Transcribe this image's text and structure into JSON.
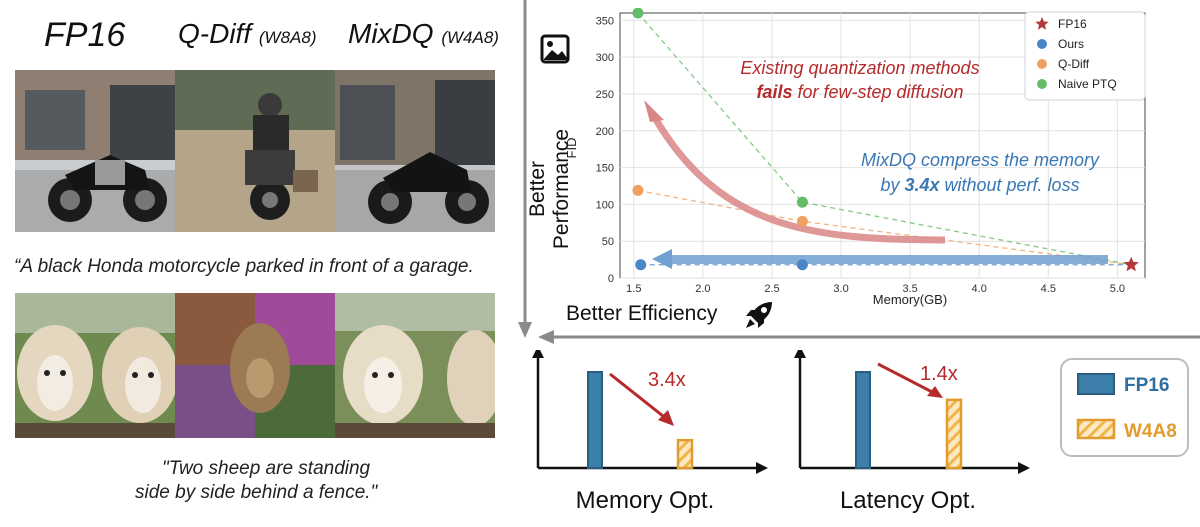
{
  "headers": {
    "fp16": "FP16",
    "qdiff": "Q-Diff",
    "qdiff_tag": "(W8A8)",
    "mixdq": "MixDQ",
    "mixdq_tag": "(W4A8)"
  },
  "captions": {
    "motorcycle": "“A black Honda motorcycle parked in front of a garage.",
    "sheep_line1": "\"Two sheep are standing",
    "sheep_line2": "side by side behind a fence.\""
  },
  "axis_titles": {
    "better_performance": "Better Performance",
    "better_efficiency": "Better Efficiency"
  },
  "icons": {
    "image": "image-icon",
    "rocket": "rocket-icon"
  },
  "colors": {
    "fp16": "#b03a3a",
    "ours": "#4a86c5",
    "qdiff": "#f0a060",
    "naive": "#66bb66",
    "blue_bar": "#3d7fab",
    "orange_bar": "#e39a2e",
    "red_text": "#b52a2a",
    "blue_text": "#3a78b5"
  },
  "chart_data": [
    {
      "type": "scatter",
      "xlabel": "Memory(GB)",
      "ylabel": "FID",
      "xlim": [
        1.4,
        5.2
      ],
      "ylim": [
        0,
        360
      ],
      "xticks": [
        "1.5",
        "2.0",
        "2.5",
        "3.0",
        "3.5",
        "4.0",
        "4.5",
        "5.0"
      ],
      "yticks": [
        "0",
        "50",
        "100",
        "150",
        "200",
        "250",
        "300",
        "350"
      ],
      "grid": true,
      "legend_position": "top-right",
      "series": [
        {
          "name": "FP16",
          "marker": "star",
          "points": [
            [
              5.1,
              18
            ]
          ]
        },
        {
          "name": "Ours",
          "marker": "circle",
          "points": [
            [
              1.55,
              18
            ],
            [
              2.72,
              18
            ]
          ]
        },
        {
          "name": "Q-Diff",
          "marker": "circle",
          "points": [
            [
              1.53,
              119
            ],
            [
              2.72,
              77
            ]
          ]
        },
        {
          "name": "Naive PTQ",
          "marker": "circle",
          "points": [
            [
              1.53,
              360
            ],
            [
              2.72,
              103
            ]
          ]
        }
      ],
      "annotations": {
        "red_line1": "Existing quantization methods",
        "red_bold": "fails",
        "red_rest": " for few-step diffusion",
        "blue_line1": "MixDQ compress the memory",
        "blue_by": "by ",
        "blue_bold": "3.4x",
        "blue_rest": " without perf. loss"
      }
    },
    {
      "type": "bar",
      "title": "Memory Opt.",
      "categories": [
        "FP16",
        "W4A8"
      ],
      "values": [
        1,
        0.29
      ],
      "annotation": "3.4x"
    },
    {
      "type": "bar",
      "title": "Latency Opt.",
      "categories": [
        "FP16",
        "W4A8"
      ],
      "values": [
        1,
        0.71
      ],
      "annotation": "1.4x"
    }
  ],
  "legend_bars": {
    "fp16": "FP16",
    "w4a8": "W4A8"
  }
}
